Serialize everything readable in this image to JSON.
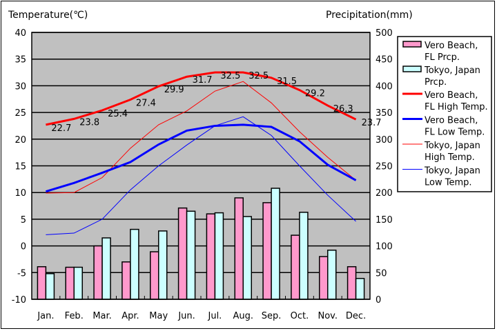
{
  "chart_data": {
    "type": "bar+line",
    "left_axis_title": "Temperature(℃)",
    "right_axis_title": "Precipitation(mm)",
    "categories": [
      "Jan.",
      "Feb.",
      "Mar.",
      "Apr.",
      "May",
      "Jun.",
      "Jul.",
      "Aug.",
      "Sep.",
      "Oct.",
      "Nov.",
      "Dec."
    ],
    "ylim_left": [
      -10,
      40
    ],
    "ylim_right": [
      0,
      500
    ],
    "yticks_left": [
      40,
      35,
      30,
      25,
      20,
      15,
      10,
      5,
      0,
      -5,
      -10
    ],
    "yticks_right": [
      500,
      450,
      400,
      350,
      300,
      250,
      200,
      150,
      100,
      50,
      0
    ],
    "grid": true,
    "legend_position": "right",
    "bar_series": [
      {
        "name": "Vero Beach, FL Prcp.",
        "legend_lines": [
          "Vero Beach,",
          "FL Prcp."
        ],
        "color": "#ff99cc",
        "values": [
          61,
          60,
          100,
          70,
          89,
          171,
          160,
          190,
          181,
          120,
          80,
          61
        ]
      },
      {
        "name": "Tokyo, Japan Prcp.",
        "legend_lines": [
          "Tokyo, Japan",
          "Prcp."
        ],
        "color": "#ccffff",
        "values": [
          48,
          60,
          115,
          131,
          128,
          165,
          162,
          155,
          208,
          163,
          92,
          39
        ]
      }
    ],
    "line_series": [
      {
        "name": "Vero Beach, FL High Temp.",
        "legend_lines": [
          "Vero Beach,",
          "FL High Temp."
        ],
        "color": "#ff0000",
        "width": 3,
        "labeled": true,
        "values": [
          22.7,
          23.8,
          25.4,
          27.4,
          29.9,
          31.7,
          32.5,
          32.5,
          31.5,
          29.2,
          26.3,
          23.7
        ],
        "labels": [
          "22.7",
          "23.8",
          "25.4",
          "27.4",
          "29.9",
          "31.7",
          "32.5",
          "32.5",
          "31.5",
          "29.2",
          "26.3",
          "23.7"
        ]
      },
      {
        "name": "Vero Beach, FL Low Temp.",
        "legend_lines": [
          "Vero Beach,",
          "FL Low Temp."
        ],
        "color": "#0000ff",
        "width": 3,
        "values": [
          10.2,
          11.8,
          13.7,
          15.7,
          19.0,
          21.6,
          22.5,
          22.7,
          22.3,
          19.6,
          15.2,
          12.3
        ]
      },
      {
        "name": "Tokyo, Japan High Temp.",
        "legend_lines": [
          "Tokyo, Japan",
          "High Temp."
        ],
        "color": "#ff0000",
        "width": 1,
        "values": [
          9.9,
          10.0,
          12.8,
          18.3,
          22.7,
          25.3,
          29.0,
          30.8,
          26.8,
          21.4,
          16.6,
          12.3
        ]
      },
      {
        "name": "Tokyo, Japan Low Temp.",
        "legend_lines": [
          "Tokyo, Japan",
          "Low Temp."
        ],
        "color": "#0000ff",
        "width": 1,
        "values": [
          2.1,
          2.4,
          5.0,
          10.5,
          15.0,
          18.9,
          22.5,
          24.2,
          20.7,
          15.0,
          9.5,
          4.6
        ]
      }
    ]
  }
}
